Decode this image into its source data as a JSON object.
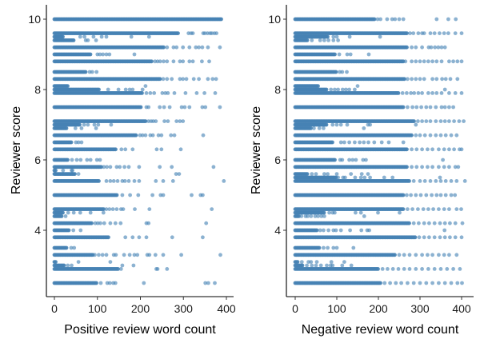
{
  "chart_data": [
    {
      "type": "scatter",
      "title": "",
      "xlabel": "Positive review word count",
      "ylabel": "Reviewer score",
      "xlim": [
        -15,
        415
      ],
      "ylim": [
        2.3,
        10.4
      ],
      "xticks": [
        0,
        100,
        200,
        300,
        400
      ],
      "yticks": [
        4,
        6,
        8,
        10
      ],
      "grid": false,
      "legend": "none",
      "marker_color": "#4682B4",
      "rows": [
        {
          "score": 10.0,
          "dense_to": 389,
          "points": []
        },
        {
          "score": 9.6,
          "dense_to": 288,
          "points": [
            312,
            318,
            322,
            346,
            350,
            356,
            362,
            366,
            372,
            377
          ]
        },
        {
          "score": 9.5,
          "dense_to": 20,
          "points": [
            60,
            70,
            91,
            110,
            121,
            179,
            220
          ]
        },
        {
          "score": 9.4,
          "dense_to": 45,
          "points": [
            73,
            78,
            97
          ]
        },
        {
          "score": 9.2,
          "dense_to": 255,
          "points": [
            262,
            277,
            284,
            299,
            314,
            329,
            336,
            344,
            357,
            385
          ]
        },
        {
          "score": 9.0,
          "dense_to": 84,
          "points": [
            100,
            106,
            113,
            121,
            128,
            186
          ]
        },
        {
          "score": 8.8,
          "dense_to": 227,
          "points": [
            234,
            240,
            246,
            254,
            262,
            277,
            292,
            299,
            314,
            322,
            343,
            360
          ]
        },
        {
          "score": 8.5,
          "dense_to": 73,
          "points": [
            82,
            88,
            98
          ]
        },
        {
          "score": 8.3,
          "dense_to": 246,
          "points": [
            253,
            262,
            273,
            292,
            299,
            307,
            324,
            336,
            357,
            368,
            376
          ]
        },
        {
          "score": 8.1,
          "dense_to": 33,
          "points": [
            212
          ]
        },
        {
          "score": 8.0,
          "dense_to": 106,
          "points": [
            125,
            149,
            166,
            175,
            182,
            205
          ]
        },
        {
          "score": 7.9,
          "dense_to": 205,
          "points": [
            214,
            223,
            232,
            251,
            258,
            264,
            279,
            305,
            331,
            349,
            374
          ]
        },
        {
          "score": 7.5,
          "dense_to": 203,
          "points": [
            214,
            219,
            245,
            255,
            268,
            296,
            303,
            314,
            344,
            351,
            385
          ]
        },
        {
          "score": 7.1,
          "dense_to": 214,
          "points": [
            219,
            225,
            230,
            236,
            256,
            264,
            284,
            292,
            299
          ]
        },
        {
          "score": 7.0,
          "dense_to": 60,
          "points": [
            69,
            78,
            93,
            102,
            132
          ]
        },
        {
          "score": 6.9,
          "dense_to": 30,
          "points": [
            49,
            63,
            97
          ]
        },
        {
          "score": 6.7,
          "dense_to": 190,
          "points": [
            199,
            205,
            212,
            223,
            229,
            242,
            249,
            271,
            279,
            346
          ]
        },
        {
          "score": 6.5,
          "dense_to": 41,
          "points": [
            50,
            56,
            63
          ]
        },
        {
          "score": 6.3,
          "dense_to": 145,
          "points": [
            156,
            165,
            182,
            238,
            249,
            294
          ]
        },
        {
          "score": 6.0,
          "dense_to": 32,
          "points": [
            41,
            52,
            61,
            76,
            84,
            99,
            106
          ]
        },
        {
          "score": 5.8,
          "dense_to": 110,
          "points": [
            115,
            122,
            130,
            145,
            152,
            163,
            173,
            197,
            245,
            273,
            370
          ]
        },
        {
          "score": 5.7,
          "dense_to": 5,
          "points": [
            20,
            40,
            42
          ]
        },
        {
          "score": 5.6,
          "dense_to": 50,
          "points": [
            56,
            283,
            290
          ]
        },
        {
          "score": 5.4,
          "dense_to": 106,
          "points": [
            121,
            130,
            138,
            147,
            158,
            164,
            173,
            186,
            197,
            236,
            253,
            276,
            394
          ]
        },
        {
          "score": 5.0,
          "dense_to": 147,
          "points": [
            158,
            176,
            195,
            228,
            247,
            253,
            319,
            340,
            345
          ]
        },
        {
          "score": 4.6,
          "dense_to": 115,
          "points": [
            121,
            128,
            136,
            145,
            155,
            160,
            187,
            221,
            366
          ]
        },
        {
          "score": 4.5,
          "dense_to": 22,
          "points": [
            32,
            45,
            60,
            84,
            114
          ]
        },
        {
          "score": 4.4,
          "dense_to": 19,
          "points": [
            26
          ]
        },
        {
          "score": 4.2,
          "dense_to": 88,
          "points": [
            95,
            101,
            107,
            116,
            130,
            142,
            154,
            214,
            219,
            353
          ]
        },
        {
          "score": 4.0,
          "dense_to": 35,
          "points": [
            44,
            61
          ]
        },
        {
          "score": 3.8,
          "dense_to": 128,
          "points": [
            165,
            182,
            197,
            214,
            274,
            345
          ]
        },
        {
          "score": 3.5,
          "dense_to": 28,
          "points": [
            39,
            46
          ]
        },
        {
          "score": 3.3,
          "dense_to": 91,
          "points": [
            94,
            103,
            112,
            121,
            138,
            143,
            162,
            175,
            186,
            193,
            216,
            221,
            235,
            253,
            295,
            386
          ]
        },
        {
          "score": 3.1,
          "dense_to": 3,
          "points": [
            56,
            130
          ]
        },
        {
          "score": 3.0,
          "dense_to": 25,
          "points": [
            31,
            40,
            158,
            184
          ]
        },
        {
          "score": 2.9,
          "dense_to": 150,
          "points": [
            155,
            237,
            240,
            262
          ]
        },
        {
          "score": 2.5,
          "dense_to": 100,
          "points": [
            108,
            123,
            129,
            137,
            142,
            208,
            351,
            358,
            373
          ]
        }
      ]
    },
    {
      "type": "scatter",
      "title": "",
      "xlabel": "Negative review word count",
      "ylabel": "Reviewer score",
      "xlim": [
        -15,
        415
      ],
      "ylim": [
        2.3,
        10.4
      ],
      "xticks": [
        0,
        100,
        200,
        300,
        400
      ],
      "yticks": [
        4,
        6,
        8,
        10
      ],
      "grid": false,
      "legend": "none",
      "marker_color": "#4682B4",
      "rows": [
        {
          "score": 10.0,
          "dense_to": 192,
          "points": [
            198,
            205,
            221,
            233,
            240,
            250,
            260,
            340,
            368,
            386
          ]
        },
        {
          "score": 9.6,
          "dense_to": 270,
          "points": [
            276,
            284,
            296,
            305,
            310,
            325,
            335,
            347,
            358,
            368,
            385,
            400
          ]
        },
        {
          "score": 9.5,
          "dense_to": 80,
          "points": [
            92,
            100,
            131,
            204
          ]
        },
        {
          "score": 9.4,
          "dense_to": 30,
          "points": [
            40,
            60,
            70,
            80,
            92,
            103
          ]
        },
        {
          "score": 9.2,
          "dense_to": 270,
          "points": [
            280,
            290,
            305,
            321,
            327,
            336,
            344,
            352,
            360
          ]
        },
        {
          "score": 9.0,
          "dense_to": 96,
          "points": [
            106,
            125,
            133,
            177
          ]
        },
        {
          "score": 8.8,
          "dense_to": 260,
          "points": [
            265,
            280,
            290,
            300,
            310,
            320,
            330,
            340,
            352,
            370,
            380,
            390,
            400
          ]
        },
        {
          "score": 8.5,
          "dense_to": 100,
          "points": [
            107,
            113,
            124
          ]
        },
        {
          "score": 8.3,
          "dense_to": 265,
          "points": [
            270,
            280,
            290,
            300,
            310,
            330,
            340,
            353,
            362,
            373,
            390
          ]
        },
        {
          "score": 8.1,
          "dense_to": 55,
          "points": [
            150
          ]
        },
        {
          "score": 8.0,
          "dense_to": 75,
          "points": [
            86,
            95,
            103,
            114,
            122,
            130,
            143,
            360
          ]
        },
        {
          "score": 7.9,
          "dense_to": 250,
          "points": [
            258,
            268,
            278,
            286,
            296,
            305,
            320,
            330,
            340,
            352,
            370,
            385,
            400
          ]
        },
        {
          "score": 7.5,
          "dense_to": 260,
          "points": [
            270,
            282,
            292,
            303,
            315,
            325,
            338,
            352,
            360,
            370,
            380
          ]
        },
        {
          "score": 7.1,
          "dense_to": 288,
          "points": [
            295,
            305,
            315,
            325,
            338,
            350,
            360,
            370,
            382,
            394,
            405
          ]
        },
        {
          "score": 7.0,
          "dense_to": 75,
          "points": [
            90,
            100,
            110,
            125,
            175,
            180,
            290
          ]
        },
        {
          "score": 6.9,
          "dense_to": 38,
          "points": [
            45,
            58,
            68,
            165
          ]
        },
        {
          "score": 6.7,
          "dense_to": 280,
          "points": [
            290,
            300,
            312,
            325,
            338,
            350,
            362,
            375,
            388
          ]
        },
        {
          "score": 6.5,
          "dense_to": 92,
          "points": [
            110,
            118,
            130,
            143,
            155,
            165,
            176,
            190,
            208,
            225,
            260
          ]
        },
        {
          "score": 6.3,
          "dense_to": 270,
          "points": [
            280,
            292,
            305,
            318,
            330,
            345,
            358,
            370,
            382,
            395,
            400
          ]
        },
        {
          "score": 6.0,
          "dense_to": 96,
          "points": [
            108,
            113,
            130,
            138,
            146,
            163,
            170,
            355
          ]
        },
        {
          "score": 5.8,
          "dense_to": 270,
          "points": [
            280,
            292,
            305,
            318,
            330,
            345,
            358,
            370,
            385,
            392
          ]
        },
        {
          "score": 5.6,
          "dense_to": 30,
          "points": [
            40,
            50,
            70,
            78,
            100,
            134,
            160,
            175
          ]
        },
        {
          "score": 5.5,
          "dense_to": 100,
          "points": [
            103,
            115,
            120,
            144,
            158,
            167,
            180,
            214,
            234,
            348
          ]
        },
        {
          "score": 5.4,
          "dense_to": 275,
          "points": [
            285,
            300,
            312,
            325,
            338,
            350,
            362,
            375,
            388,
            408
          ]
        },
        {
          "score": 5.0,
          "dense_to": 260,
          "points": [
            268,
            278,
            290,
            302,
            315,
            328,
            340,
            350,
            362,
            375,
            384
          ]
        },
        {
          "score": 4.6,
          "dense_to": 262,
          "points": [
            270,
            282,
            295,
            308,
            320,
            332,
            345,
            358,
            370,
            388,
            399
          ]
        },
        {
          "score": 4.5,
          "dense_to": 70,
          "points": [
            82,
            90,
            95,
            145,
            158,
            199,
            251
          ]
        },
        {
          "score": 4.4,
          "dense_to": 10,
          "points": [
            15,
            25,
            30,
            38,
            48,
            55,
            63,
            70,
            166
          ]
        },
        {
          "score": 4.2,
          "dense_to": 275,
          "points": [
            285,
            297,
            310,
            322,
            335,
            348,
            360,
            372,
            385,
            402
          ]
        },
        {
          "score": 4.0,
          "dense_to": 52,
          "points": [
            60,
            68,
            80,
            92,
            98,
            110,
            132,
            159,
            173,
            178,
            359
          ]
        },
        {
          "score": 3.8,
          "dense_to": 290,
          "points": [
            298,
            310,
            322,
            335,
            348,
            360,
            372,
            385,
            400
          ]
        },
        {
          "score": 3.5,
          "dense_to": 58,
          "points": [
            68,
            78,
            92,
            100,
            140
          ]
        },
        {
          "score": 3.3,
          "dense_to": 240,
          "points": [
            250,
            262,
            275,
            290,
            305,
            318,
            330,
            345,
            358,
            370,
            388
          ]
        },
        {
          "score": 3.1,
          "dense_to": 8,
          "points": [
            16,
            32,
            38,
            52,
            87,
            118
          ]
        },
        {
          "score": 3.0,
          "dense_to": 18,
          "points": [
            28,
            40,
            50,
            62,
            76,
            85,
            90,
            113,
            135
          ]
        },
        {
          "score": 2.9,
          "dense_to": 200,
          "points": [
            210,
            222,
            235,
            248,
            262,
            275,
            290,
            305,
            320,
            335,
            350,
            365,
            380,
            396
          ]
        },
        {
          "score": 2.5,
          "dense_to": 205,
          "points": [
            215,
            228,
            242,
            255,
            270,
            285,
            300,
            315,
            330,
            345,
            360,
            375,
            390,
            401
          ]
        }
      ]
    }
  ]
}
